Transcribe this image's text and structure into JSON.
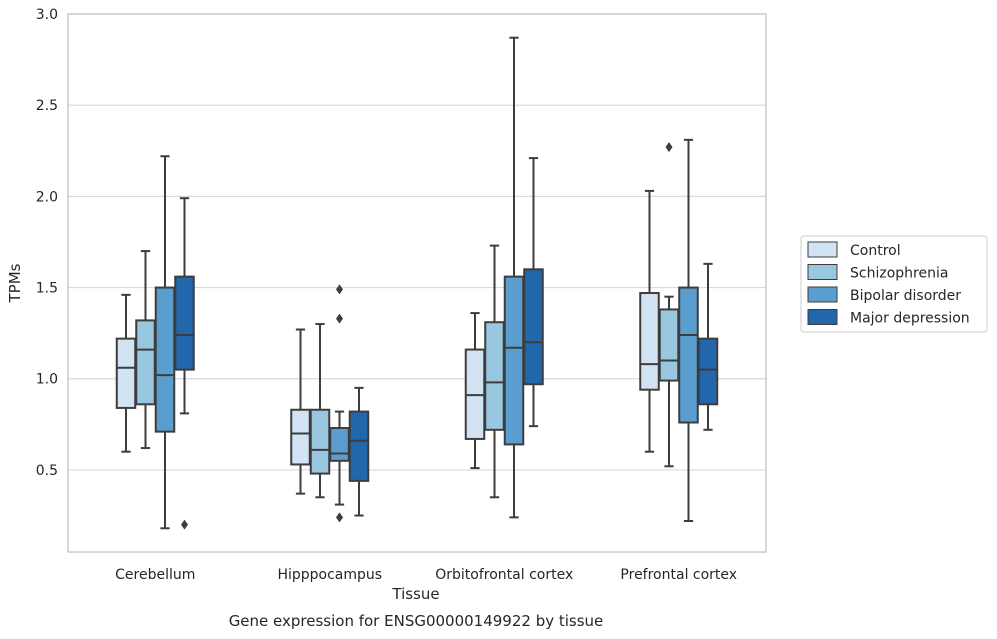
{
  "chart_data": {
    "type": "box",
    "caption": "Gene expression for ENSG00000149922 by tissue",
    "xlabel": "Tissue",
    "ylabel": "TPMs",
    "ylim": [
      0.05,
      3.0
    ],
    "yticks": [
      "0.5",
      "1.0",
      "1.5",
      "2.0",
      "2.5",
      "3.0"
    ],
    "grid": true,
    "legend_position": "right",
    "categories": [
      "Cerebellum",
      "Hipppocampus",
      "Orbitofrontal cortex",
      "Prefrontal cortex"
    ],
    "series": [
      {
        "name": "Control",
        "color": "#d2e3f3",
        "boxes": [
          {
            "whisker_low": 0.6,
            "q1": 0.84,
            "median": 1.06,
            "q3": 1.22,
            "whisker_high": 1.46,
            "outliers": []
          },
          {
            "whisker_low": 0.37,
            "q1": 0.53,
            "median": 0.7,
            "q3": 0.83,
            "whisker_high": 1.27,
            "outliers": []
          },
          {
            "whisker_low": 0.51,
            "q1": 0.67,
            "median": 0.91,
            "q3": 1.16,
            "whisker_high": 1.36,
            "outliers": []
          },
          {
            "whisker_low": 0.6,
            "q1": 0.94,
            "median": 1.08,
            "q3": 1.47,
            "whisker_high": 2.03,
            "outliers": []
          }
        ]
      },
      {
        "name": "Schizophrenia",
        "color": "#9ac7e0",
        "boxes": [
          {
            "whisker_low": 0.62,
            "q1": 0.86,
            "median": 1.16,
            "q3": 1.32,
            "whisker_high": 1.7,
            "outliers": []
          },
          {
            "whisker_low": 0.35,
            "q1": 0.48,
            "median": 0.61,
            "q3": 0.83,
            "whisker_high": 1.3,
            "outliers": []
          },
          {
            "whisker_low": 0.35,
            "q1": 0.72,
            "median": 0.98,
            "q3": 1.31,
            "whisker_high": 1.73,
            "outliers": []
          },
          {
            "whisker_low": 0.52,
            "q1": 0.99,
            "median": 1.1,
            "q3": 1.38,
            "whisker_high": 1.45,
            "outliers": [
              2.27
            ]
          }
        ]
      },
      {
        "name": "Bipolar disorder",
        "color": "#5a9ecf",
        "boxes": [
          {
            "whisker_low": 0.18,
            "q1": 0.71,
            "median": 1.02,
            "q3": 1.5,
            "whisker_high": 2.22,
            "outliers": []
          },
          {
            "whisker_low": 0.31,
            "q1": 0.55,
            "median": 0.59,
            "q3": 0.73,
            "whisker_high": 0.82,
            "outliers": [
              1.49,
              1.33,
              0.24
            ]
          },
          {
            "whisker_low": 0.24,
            "q1": 0.64,
            "median": 1.17,
            "q3": 1.56,
            "whisker_high": 2.87,
            "outliers": []
          },
          {
            "whisker_low": 0.22,
            "q1": 0.76,
            "median": 1.24,
            "q3": 1.5,
            "whisker_high": 2.31,
            "outliers": []
          }
        ]
      },
      {
        "name": "Major depression",
        "color": "#2266ac",
        "boxes": [
          {
            "whisker_low": 0.81,
            "q1": 1.05,
            "median": 1.24,
            "q3": 1.56,
            "whisker_high": 1.99,
            "outliers": [
              0.2
            ]
          },
          {
            "whisker_low": 0.25,
            "q1": 0.44,
            "median": 0.66,
            "q3": 0.82,
            "whisker_high": 0.95,
            "outliers": []
          },
          {
            "whisker_low": 0.74,
            "q1": 0.97,
            "median": 1.2,
            "q3": 1.6,
            "whisker_high": 2.21,
            "outliers": []
          },
          {
            "whisker_low": 0.72,
            "q1": 0.86,
            "median": 1.05,
            "q3": 1.22,
            "whisker_high": 1.63,
            "outliers": []
          }
        ]
      }
    ]
  }
}
